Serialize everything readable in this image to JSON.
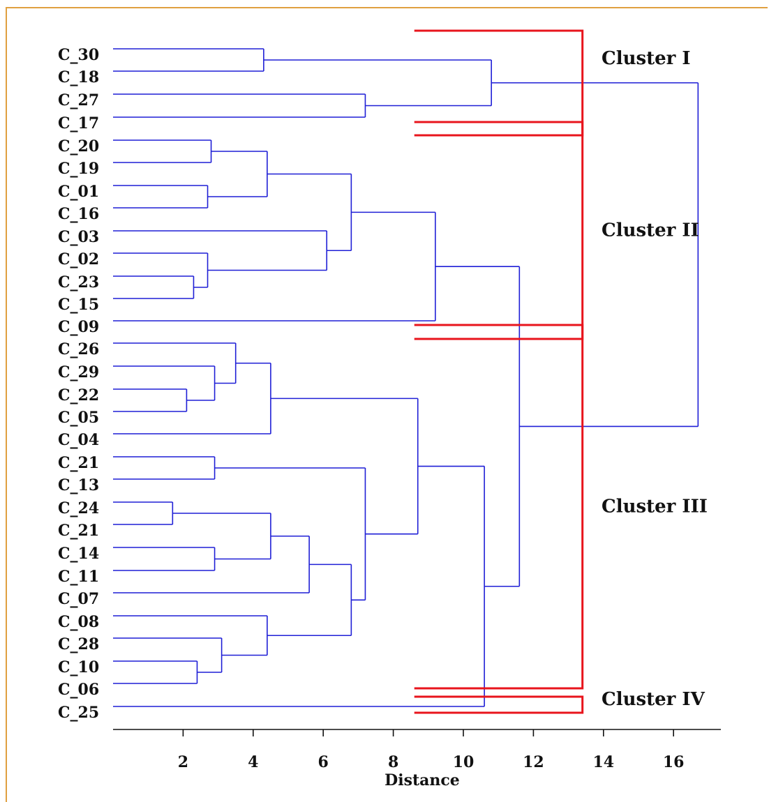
{
  "chart_data": {
    "type": "dendrogram",
    "xlabel": "Distance",
    "xticks": [
      2,
      4,
      6,
      8,
      10,
      12,
      14,
      16
    ],
    "xlim": [
      0,
      17.4
    ],
    "leaves": [
      "C_30",
      "C_18",
      "C_27",
      "C_17",
      "C_20",
      "C_19",
      "C_01",
      "C_16",
      "C_03",
      "C_02",
      "C_23",
      "C_15",
      "C_09",
      "C_26",
      "C_29",
      "C_22",
      "C_05",
      "C_04",
      "C_21",
      "C_13",
      "C_24",
      "C_21",
      "C_14",
      "C_11",
      "C_07",
      "C_08",
      "C_28",
      "C_10",
      "C_06",
      "C_25"
    ],
    "merges": [
      {
        "a": "C_30",
        "b": "C_18",
        "distance": 4.3
      },
      {
        "a": "C_27",
        "b": "C_17",
        "distance": 7.2
      },
      {
        "a": "C_20",
        "b": "C_19",
        "distance": 2.8
      },
      {
        "a": "C_01",
        "b": "C_16",
        "distance": 2.7
      },
      {
        "a": "C_23",
        "b": "C_15",
        "distance": 2.3
      },
      {
        "a": "C_02",
        "b": "{C_23,C_15}",
        "distance": 2.7
      },
      {
        "a": "C_22",
        "b": "C_05",
        "distance": 2.1
      },
      {
        "a": "C_24",
        "b": "C_21",
        "distance": 1.7
      },
      {
        "a": "C_10",
        "b": "C_06",
        "distance": 2.4
      },
      {
        "a": "C_21",
        "b": "C_13",
        "distance": 2.9
      },
      {
        "a": "C_14",
        "b": "C_11",
        "distance": 2.9
      },
      {
        "a": "C_29",
        "b": "{C_22,C_05}",
        "distance": 2.9
      },
      {
        "a": "C_28",
        "b": "{C_10,C_06}",
        "distance": 3.1
      },
      {
        "a": "C_26",
        "b": "{C_29,C_22,C_05}",
        "distance": 3.5
      },
      {
        "a": "{C_20,C_19}",
        "b": "{C_01,C_16}",
        "distance": 4.4
      },
      {
        "a": "C_08",
        "b": "{C_28,C_10,C_06}",
        "distance": 4.4
      },
      {
        "a": "{C_26,...}",
        "b": "C_04",
        "distance": 4.5
      },
      {
        "a": "{C_24,C_21}",
        "b": "{C_14,C_11}",
        "distance": 4.5
      },
      {
        "a": "{C_24,C_21,C_14,C_11}",
        "b": "C_07",
        "distance": 5.6
      },
      {
        "a": "C_03",
        "b": "{C_02,C_23,C_15}",
        "distance": 6.1
      },
      {
        "a": "{C_24,...,C_07}",
        "b": "{C_08,...,C_06}",
        "distance": 6.8
      },
      {
        "a": "{C_20,C_19,C_01,C_16}",
        "b": "{C_03,C_02,C_23,C_15}",
        "distance": 6.8
      },
      {
        "a": "{C_21,C_13}",
        "b": "{C_24,...,C_06}",
        "distance": 7.2
      },
      {
        "a": "{C_26,...,C_04}",
        "b": "{C_21,...,C_06}",
        "distance": 8.7
      },
      {
        "a": "{C_20,...,C_15}",
        "b": "C_09",
        "distance": 9.2
      },
      {
        "a": "{C_26,...,C_06}",
        "b": "C_25",
        "distance": 10.6
      },
      {
        "a": "{C_30,C_18}",
        "b": "{C_27,C_17}",
        "distance": 10.8
      },
      {
        "a": "Cluster II",
        "b": "Cluster III+IV",
        "distance": 11.6
      },
      {
        "a": "Cluster I",
        "b": "Clusters II-IV",
        "distance": 16.7
      }
    ],
    "clusters": [
      {
        "label": "Cluster I",
        "first": 0,
        "last": 3
      },
      {
        "label": "Cluster II",
        "first": 4,
        "last": 12
      },
      {
        "label": "Cluster III",
        "first": 13,
        "last": 28
      },
      {
        "label": "Cluster IV",
        "first": 29,
        "last": 29
      }
    ],
    "colors": {
      "dendrogram": "#1f1fd6",
      "cluster_bracket": "#e8141c",
      "frame": "#e0a040"
    }
  }
}
